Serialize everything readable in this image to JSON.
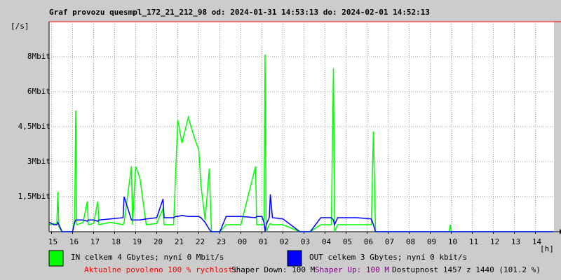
{
  "chart_data": {
    "type": "line",
    "title": "Graf provozu quesmpl_172_21_212_98 od: 2024-01-31 14:53:13 do: 2024-02-01 14:52:13",
    "y_unit": "[/s]",
    "x_unit": "[h]",
    "grid": true,
    "xlim": [
      14.883,
      38.883
    ],
    "ylim": [
      0,
      9000000
    ],
    "xticks": [
      {
        "value": 15,
        "label": "15"
      },
      {
        "value": 16,
        "label": "16"
      },
      {
        "value": 17,
        "label": "17"
      },
      {
        "value": 18,
        "label": "18"
      },
      {
        "value": 19,
        "label": "19"
      },
      {
        "value": 20,
        "label": "20"
      },
      {
        "value": 21,
        "label": "21"
      },
      {
        "value": 22,
        "label": "22"
      },
      {
        "value": 23,
        "label": "23"
      },
      {
        "value": 24,
        "label": "00"
      },
      {
        "value": 25,
        "label": "01"
      },
      {
        "value": 26,
        "label": "02"
      },
      {
        "value": 27,
        "label": "03"
      },
      {
        "value": 28,
        "label": "04"
      },
      {
        "value": 29,
        "label": "05"
      },
      {
        "value": 30,
        "label": "06"
      },
      {
        "value": 31,
        "label": "07"
      },
      {
        "value": 32,
        "label": "08"
      },
      {
        "value": 33,
        "label": "09"
      },
      {
        "value": 34,
        "label": "10"
      },
      {
        "value": 35,
        "label": "11"
      },
      {
        "value": 36,
        "label": "12"
      },
      {
        "value": 37,
        "label": "13"
      },
      {
        "value": 38,
        "label": "14"
      }
    ],
    "yticks": [
      {
        "value": 1500000,
        "label": "1,5Mbit"
      },
      {
        "value": 3000000,
        "label": "3Mbit"
      },
      {
        "value": 4500000,
        "label": "4,5Mbit"
      },
      {
        "value": 6000000,
        "label": "6Mbit"
      },
      {
        "value": 7500000,
        "label": "8Mbit"
      }
    ],
    "x": [
      14.9,
      15.1,
      15.25,
      15.3,
      15.35,
      15.5,
      16.0,
      16.1,
      16.15,
      16.2,
      16.5,
      16.7,
      16.75,
      17.0,
      17.2,
      17.25,
      17.8,
      18.4,
      18.45,
      18.8,
      18.85,
      19.0,
      19.2,
      19.5,
      20.0,
      20.3,
      20.35,
      20.8,
      20.9,
      21.0,
      21.2,
      21.5,
      21.8,
      22.0,
      22.1,
      22.3,
      22.5,
      22.6,
      23.0,
      23.3,
      24.0,
      24.7,
      24.75,
      25.0,
      25.1,
      25.15,
      25.2,
      25.35,
      25.4,
      25.5,
      26.0,
      26.8,
      27.3,
      27.8,
      28.3,
      28.4,
      28.45,
      28.6,
      29.5,
      30.2,
      30.3,
      30.4,
      30.5,
      33.9,
      33.95,
      34.0,
      38.85
    ],
    "series": [
      {
        "name": "IN celkem 4 Gbytes; nyní 0 Mbit/s",
        "color": "#00ff00",
        "values": [
          300000,
          350000,
          300000,
          1700000,
          200000,
          0,
          0,
          600000,
          5200000,
          300000,
          400000,
          1300000,
          300000,
          350000,
          1300000,
          300000,
          400000,
          300000,
          400000,
          2800000,
          300000,
          2800000,
          2300000,
          300000,
          350000,
          1000000,
          300000,
          300000,
          2500000,
          4800000,
          3800000,
          4900000,
          4000000,
          3500000,
          2000000,
          500000,
          2700000,
          0,
          0,
          300000,
          300000,
          2800000,
          300000,
          300000,
          300000,
          7600000,
          0,
          300000,
          350000,
          300000,
          300000,
          0,
          0,
          300000,
          300000,
          7000000,
          0,
          300000,
          300000,
          300000,
          4300000,
          0,
          0,
          0,
          300000,
          0,
          0
        ]
      },
      {
        "name": "OUT celkem 3 Gbytes; nyní 0 kbit/s",
        "color": "#0000ff",
        "values": [
          400000,
          300000,
          300000,
          400000,
          300000,
          0,
          0,
          400000,
          500000,
          500000,
          500000,
          450000,
          500000,
          500000,
          450000,
          500000,
          550000,
          600000,
          1500000,
          500000,
          500000,
          500000,
          500000,
          550000,
          600000,
          1400000,
          600000,
          600000,
          650000,
          650000,
          700000,
          650000,
          650000,
          650000,
          600000,
          400000,
          100000,
          0,
          0,
          650000,
          650000,
          600000,
          650000,
          650000,
          400000,
          0,
          300000,
          600000,
          1600000,
          600000,
          550000,
          0,
          0,
          600000,
          600000,
          500000,
          300000,
          600000,
          600000,
          550000,
          300000,
          0,
          0,
          0,
          0,
          0,
          0
        ]
      }
    ],
    "footer": [
      {
        "text": "Aktualne povoleno 100 % rychlosti",
        "color": "#ff0000"
      },
      {
        "text": "Shaper Down: 100 M",
        "color": "#000000"
      },
      {
        "text": "Shaper Up: 100 M",
        "color": "#800080"
      },
      {
        "text": "Dostupnost 1457 z 1440 (101.2 %)",
        "color": "#000000"
      }
    ]
  }
}
